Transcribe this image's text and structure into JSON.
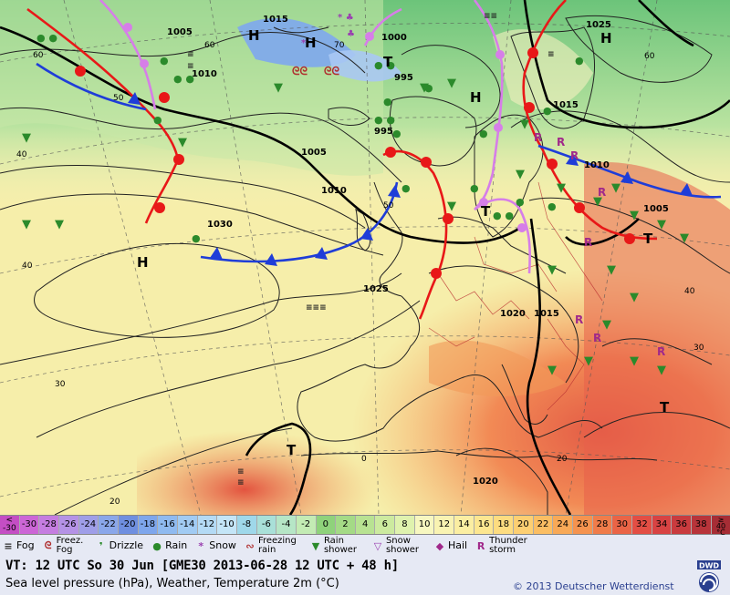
{
  "pressure_labels": [
    "1015",
    "1005",
    "1010",
    "1000",
    "995",
    "995",
    "1005",
    "1010",
    "1030",
    "1025",
    "1015",
    "1010",
    "1005",
    "1025",
    "1020",
    "1015",
    "1020"
  ],
  "highs_lows": [
    "H",
    "H",
    "T",
    "H",
    "H",
    "H",
    "T",
    "T",
    "T",
    "T"
  ],
  "temp_grid_labels": [
    "60",
    "60",
    "50",
    "70",
    "60",
    "50",
    "40",
    "40",
    "30",
    "20",
    "40",
    "30",
    "0",
    "20"
  ],
  "scale": {
    "values": [
      "-30",
      "-30",
      "-28",
      "-26",
      "-24",
      "-22",
      "-20",
      "-18",
      "-16",
      "-14",
      "-12",
      "-10",
      "-8",
      "-6",
      "-4",
      "-2",
      "0",
      "2",
      "4",
      "6",
      "8",
      "10",
      "12",
      "14",
      "16",
      "18",
      "20",
      "22",
      "24",
      "26",
      "28",
      "30",
      "32",
      "34",
      "36",
      "38",
      "40"
    ],
    "first_prefix": "<",
    "last_prefix": "≥",
    "unit": "°C",
    "colors": [
      "#c44ec4",
      "#cc66d6",
      "#c57de0",
      "#b592e6",
      "#9f9ee8",
      "#8aa7ea",
      "#6f8fe0",
      "#7ea6ec",
      "#8fbaf0",
      "#a1cbf3",
      "#b4daf5",
      "#c4e5f7",
      "#9fd8ea",
      "#a9e0d8",
      "#b6e6c6",
      "#c3ebb4",
      "#8fd27b",
      "#a4da86",
      "#b8e292",
      "#ccea9f",
      "#dff2ae",
      "#f7f7c0",
      "#f9f3b2",
      "#fbeea2",
      "#fce690",
      "#fddc80",
      "#fdcf72",
      "#fbbe63",
      "#f8a957",
      "#f5934f",
      "#f07c4a",
      "#ea6446",
      "#e34e44",
      "#d84343",
      "#c93b3e",
      "#b8343a",
      "#a62d35"
    ]
  },
  "legend": [
    {
      "icon": "fog-icon",
      "label": "Fog"
    },
    {
      "icon": "freezing-fog-icon",
      "label": "Freez. Fog"
    },
    {
      "icon": "drizzle-icon",
      "label": "Drizzle"
    },
    {
      "icon": "rain-icon",
      "label": "Rain"
    },
    {
      "icon": "snow-icon",
      "label": "Snow"
    },
    {
      "icon": "freezing-rain-icon",
      "label": "Freezing rain"
    },
    {
      "icon": "rain-shower-icon",
      "label": "Rain shower"
    },
    {
      "icon": "snow-shower-icon",
      "label": "Snow shower"
    },
    {
      "icon": "hail-icon",
      "label": "Hail"
    },
    {
      "icon": "thunderstorm-icon",
      "label": "Thunder storm"
    }
  ],
  "info": {
    "valid_time": "VT: 12 UTC So  30 Jun [GME30 2013-06-28  12 UTC + 48 h]",
    "description": "Sea level pressure (hPa), Weather, Temperature 2m (°C)",
    "copyright": "© 2013 Deutscher Wetterdienst",
    "logo_text": "DWD"
  }
}
